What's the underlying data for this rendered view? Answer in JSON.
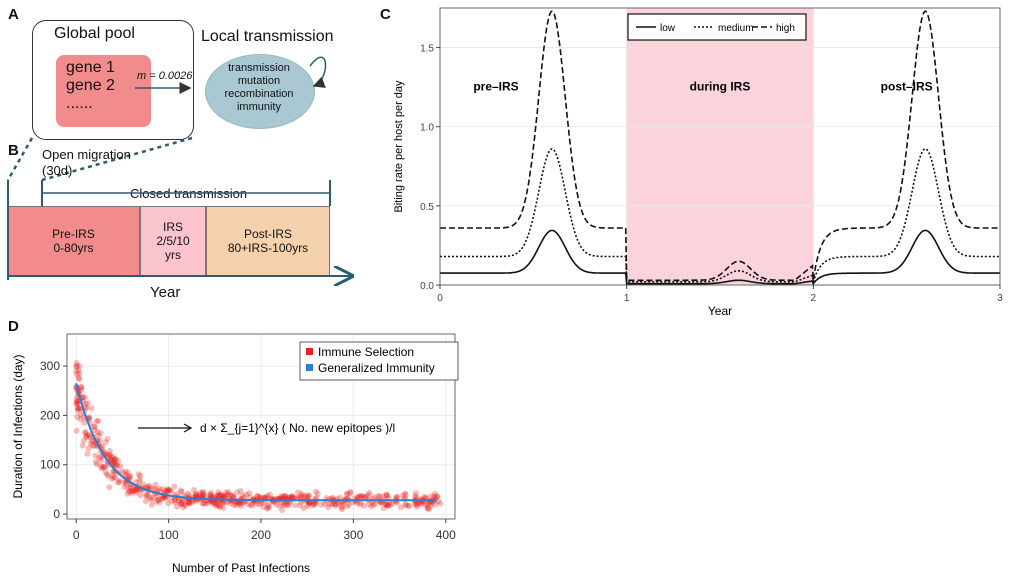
{
  "panel_a": {
    "label": "A",
    "global_pool_title": "Global pool",
    "genes": [
      "gene 1",
      "gene 2",
      "......"
    ],
    "migration_rate": "m = 0.0026",
    "local_title": "Local transmission",
    "local_processes": [
      "transmission",
      "mutation",
      "recombination",
      "immunity"
    ]
  },
  "panel_b": {
    "label": "B",
    "open_migration": "Open migration",
    "open_migration_days": "(30d)",
    "closed_transmission": "Closed transmission",
    "phases": [
      {
        "name": "Pre-IRS",
        "years": "0-80yrs",
        "color": "#f28b8b"
      },
      {
        "name": "IRS",
        "years": "2/5/10 yrs",
        "color": "#fbc4ce"
      },
      {
        "name": "Post-IRS",
        "years": "80+IRS-100yrs",
        "color": "#f5d2ad"
      }
    ],
    "xlabel": "Year"
  },
  "panel_c": {
    "label": "C",
    "chart_data": {
      "type": "line",
      "xlabel": "Year",
      "ylabel": "Biting rate per host per day",
      "xlim": [
        0,
        3
      ],
      "ylim": [
        0,
        1.75
      ],
      "x_ticks": [
        0,
        1,
        2,
        3
      ],
      "y_ticks": [
        0.0,
        0.5,
        1.0,
        1.5
      ],
      "shaded_region": {
        "from": 1,
        "to": 2,
        "color": "#fbd3dc"
      },
      "region_labels": [
        "pre–IRS",
        "during IRS",
        "post–IRS"
      ],
      "legend": [
        "low",
        "medium",
        "high"
      ],
      "series": [
        {
          "name": "low",
          "baseline": 0.075,
          "peak": 0.345,
          "irs_baseline": 0.008,
          "irs_peak": 0.03
        },
        {
          "name": "medium",
          "baseline": 0.18,
          "peak": 0.86,
          "irs_baseline": 0.02,
          "irs_peak": 0.09
        },
        {
          "name": "high",
          "baseline": 0.36,
          "peak": 1.73,
          "irs_baseline": 0.03,
          "irs_peak": 0.15
        }
      ]
    }
  },
  "panel_d": {
    "label": "D",
    "chart_data": {
      "type": "scatter",
      "xlabel": "Number of Past Infections",
      "ylabel": "Duration of Infections (day)",
      "xlim": [
        -10,
        410
      ],
      "ylim": [
        -10,
        365
      ],
      "x_ticks": [
        0,
        100,
        200,
        300,
        400
      ],
      "y_ticks": [
        0,
        100,
        200,
        300
      ],
      "legend": [
        {
          "name": "Immune Selection",
          "color": "#e8201f"
        },
        {
          "name": "Generalized Immunity",
          "color": "#2a7fd4"
        }
      ],
      "fit_curve": {
        "model": "exponential decay",
        "start": 265,
        "floor": 28,
        "rate": 0.032
      },
      "annotation": "d × Σ_{j=1}^{x} ( No. new epitopes )/l"
    }
  }
}
